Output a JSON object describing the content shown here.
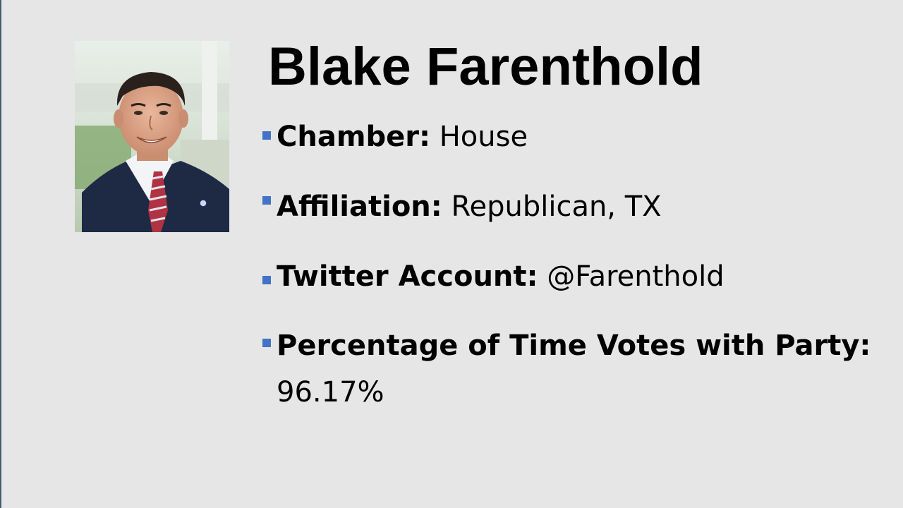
{
  "slide": {
    "title": "Blake Farenthold",
    "photo_icon": "portrait-photo",
    "accent_color": "#4472c4",
    "background_color": "#e6e6e6",
    "bullets": [
      {
        "label": "Chamber:",
        "value": "House"
      },
      {
        "label": "Affiliation:",
        "value": "Republican, TX"
      },
      {
        "label": "Twitter Account:",
        "value": "@Farenthold"
      },
      {
        "label": "Percentage of Time Votes with Party:",
        "value": "96.17%"
      }
    ]
  }
}
